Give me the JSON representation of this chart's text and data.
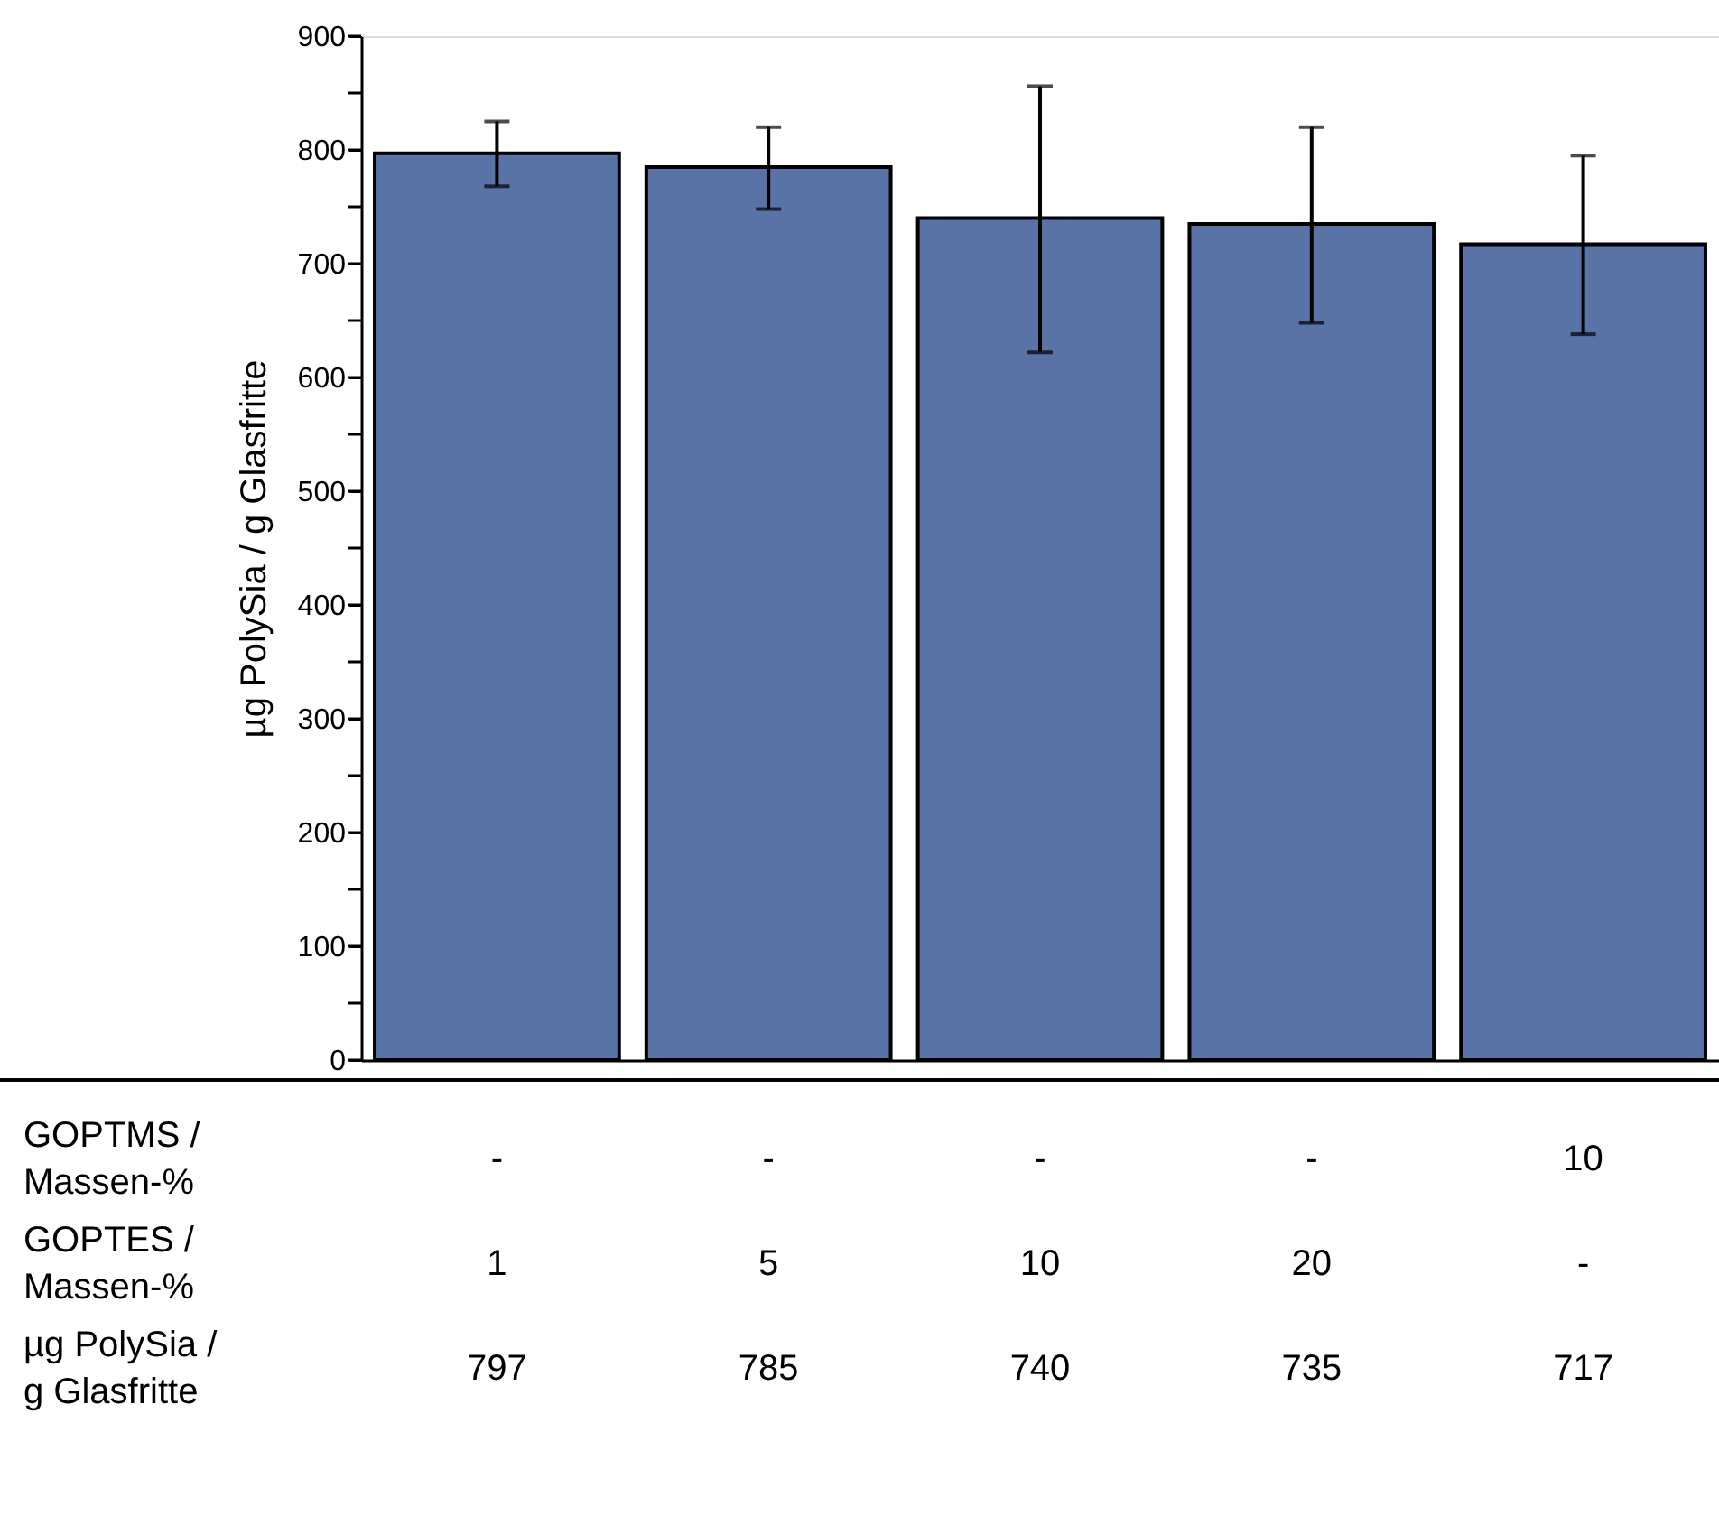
{
  "chart_data": {
    "type": "bar",
    "ylabel": "µg PolySia / g Glasfritte",
    "categories": [
      null,
      null,
      null,
      null,
      null
    ],
    "values": [
      797,
      785,
      740,
      735,
      717
    ],
    "errors": [
      [
        768,
        825
      ],
      [
        748,
        820
      ],
      [
        622,
        856
      ],
      [
        648,
        820
      ],
      [
        638,
        795
      ]
    ],
    "color": "#5a73a6",
    "ylim": [
      0,
      900
    ],
    "yticks": [
      0,
      {
        "value": 50,
        "label": null
      },
      100,
      {
        "value": 150,
        "label": null
      },
      200,
      {
        "value": 250,
        "label": null
      },
      300,
      {
        "value": 350,
        "label": null
      },
      400,
      {
        "value": 450,
        "label": null
      },
      500,
      {
        "value": 550,
        "label": null
      },
      600,
      {
        "value": 650,
        "label": null
      },
      700,
      {
        "value": 750,
        "label": null
      },
      800,
      {
        "value": 850,
        "label": null
      },
      900
    ],
    "data_labels": true,
    "grid": false,
    "annotations": [
      "GOPTMS / Massen-%",
      "-",
      "-",
      "-",
      "-",
      "10",
      "GOPTES / Massen-%",
      "1",
      "5",
      "10",
      "20",
      "-",
      "µg PolySia / g Glasfritte"
    ]
  }
}
